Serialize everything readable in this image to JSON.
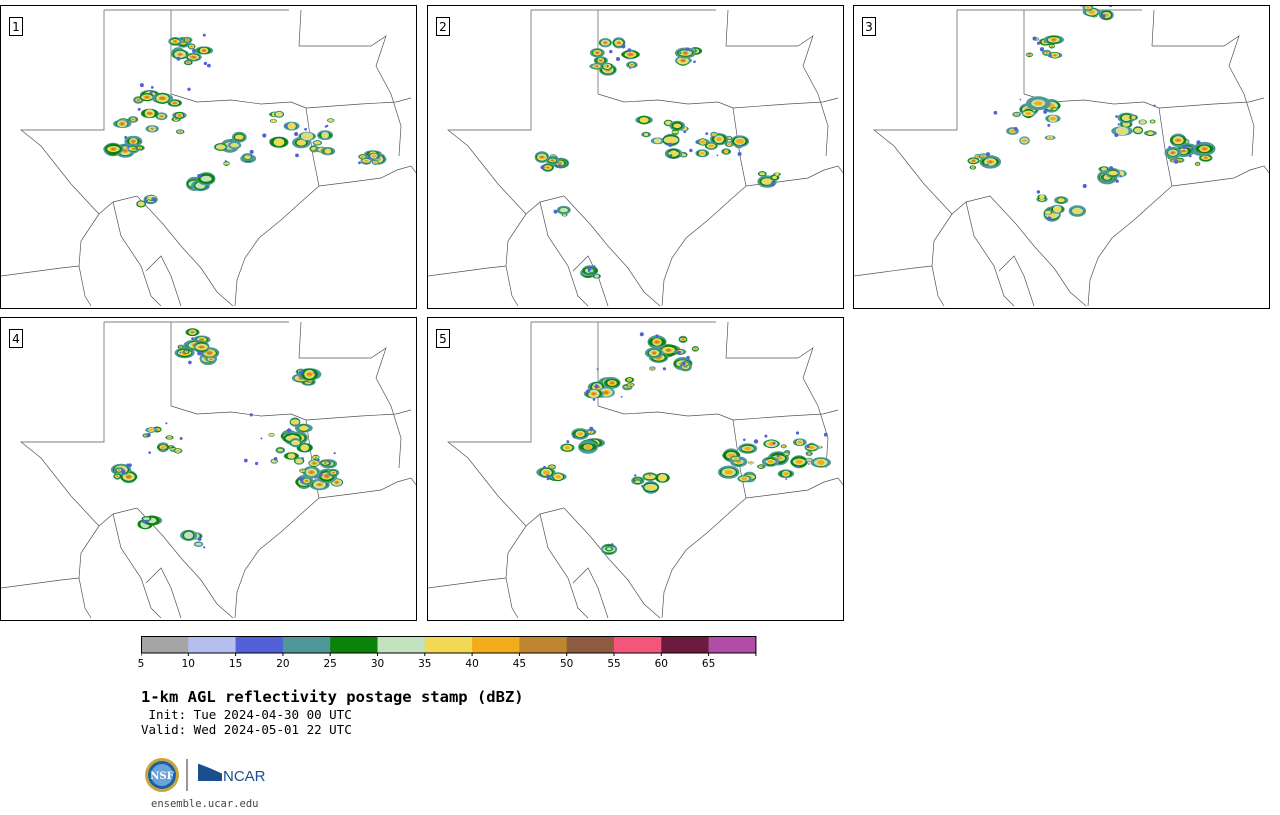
{
  "panels": [
    {
      "label": "1"
    },
    {
      "label": "2"
    },
    {
      "label": "3"
    },
    {
      "label": "4"
    },
    {
      "label": "5"
    }
  ],
  "colorbar": {
    "ticks": [
      "5",
      "10",
      "15",
      "20",
      "25",
      "30",
      "35",
      "40",
      "45",
      "50",
      "55",
      "60",
      "65"
    ],
    "colors": [
      "#a5a5a5",
      "#b4bff0",
      "#5361d8",
      "#4f9899",
      "#0b8309",
      "#c1e1bf",
      "#f1d956",
      "#f2ac1c",
      "#bf8531",
      "#8d5b40",
      "#f4557b",
      "#6c1b3e",
      "#b04da6"
    ]
  },
  "title": "1-km AGL reflectivity postage stamp (dBZ)",
  "init": " Init: Tue 2024-04-30 00 UTC",
  "valid": "Valid: Wed 2024-05-01 22 UTC",
  "logo": {
    "left_text": "NSF",
    "right_text": "NCAR"
  },
  "website": "ensemble.ucar.edu"
}
